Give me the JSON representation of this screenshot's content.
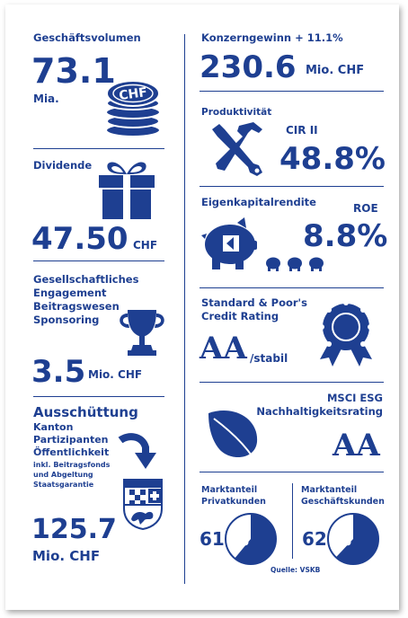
{
  "colors": {
    "primary": "#1e3f91",
    "background": "#ffffff"
  },
  "left": {
    "volume": {
      "label": "Geschäftsvolumen",
      "value": "73.1",
      "unit": "Mia.",
      "coin_text": "CHF",
      "icon": "coin-stack-icon"
    },
    "dividend": {
      "label": "Dividende",
      "value": "47.50",
      "unit": "CHF",
      "icon": "gift-icon"
    },
    "engagement": {
      "label_lines": [
        "Gesellschaftliches",
        "Engagement",
        "Beitragswesen",
        "Sponsoring"
      ],
      "value": "3.5",
      "unit": "Mio. CHF",
      "icon": "trophy-icon"
    },
    "distribution": {
      "title": "Ausschüttung",
      "lines": [
        "Kanton",
        "Partizipanten",
        "Öffentlichkeit"
      ],
      "notes": [
        "inkl. Beitragsfonds",
        "und Abgeltung",
        "Staatsgarantie"
      ],
      "value": "125.7",
      "unit": "Mio. CHF",
      "icon": "coat-of-arms-icon"
    }
  },
  "right": {
    "profit": {
      "label": "Konzerngewinn + 11.1%",
      "value": "230.6",
      "unit": "Mio. CHF"
    },
    "productivity": {
      "label": "Produktivität",
      "sub": "CIR II",
      "value": "48.8%",
      "icon": "tools-icon"
    },
    "equity": {
      "label": "Eigenkapitalrendite",
      "sub": "ROE",
      "value": "8.8%",
      "icon": "piggy-bank-icon"
    },
    "rating": {
      "label_lines": [
        "Standard & Poor's",
        "Credit Rating"
      ],
      "value": "AA",
      "suffix": "/stabil",
      "icon": "rosette-icon"
    },
    "esg": {
      "label_lines": [
        "MSCI ESG",
        "Nachhaltigkeitsrating"
      ],
      "value": "AA",
      "icon": "leaf-icon"
    },
    "market": {
      "private": {
        "label_lines": [
          "Marktanteil",
          "Privatkunden"
        ],
        "value": "61",
        "percent_sign": "%",
        "share": 0.61
      },
      "business": {
        "label_lines": [
          "Marktanteil",
          "Geschäftskunden"
        ],
        "value": "62",
        "percent_sign": "%",
        "share": 0.62
      },
      "source": "Quelle: VSKB"
    }
  }
}
